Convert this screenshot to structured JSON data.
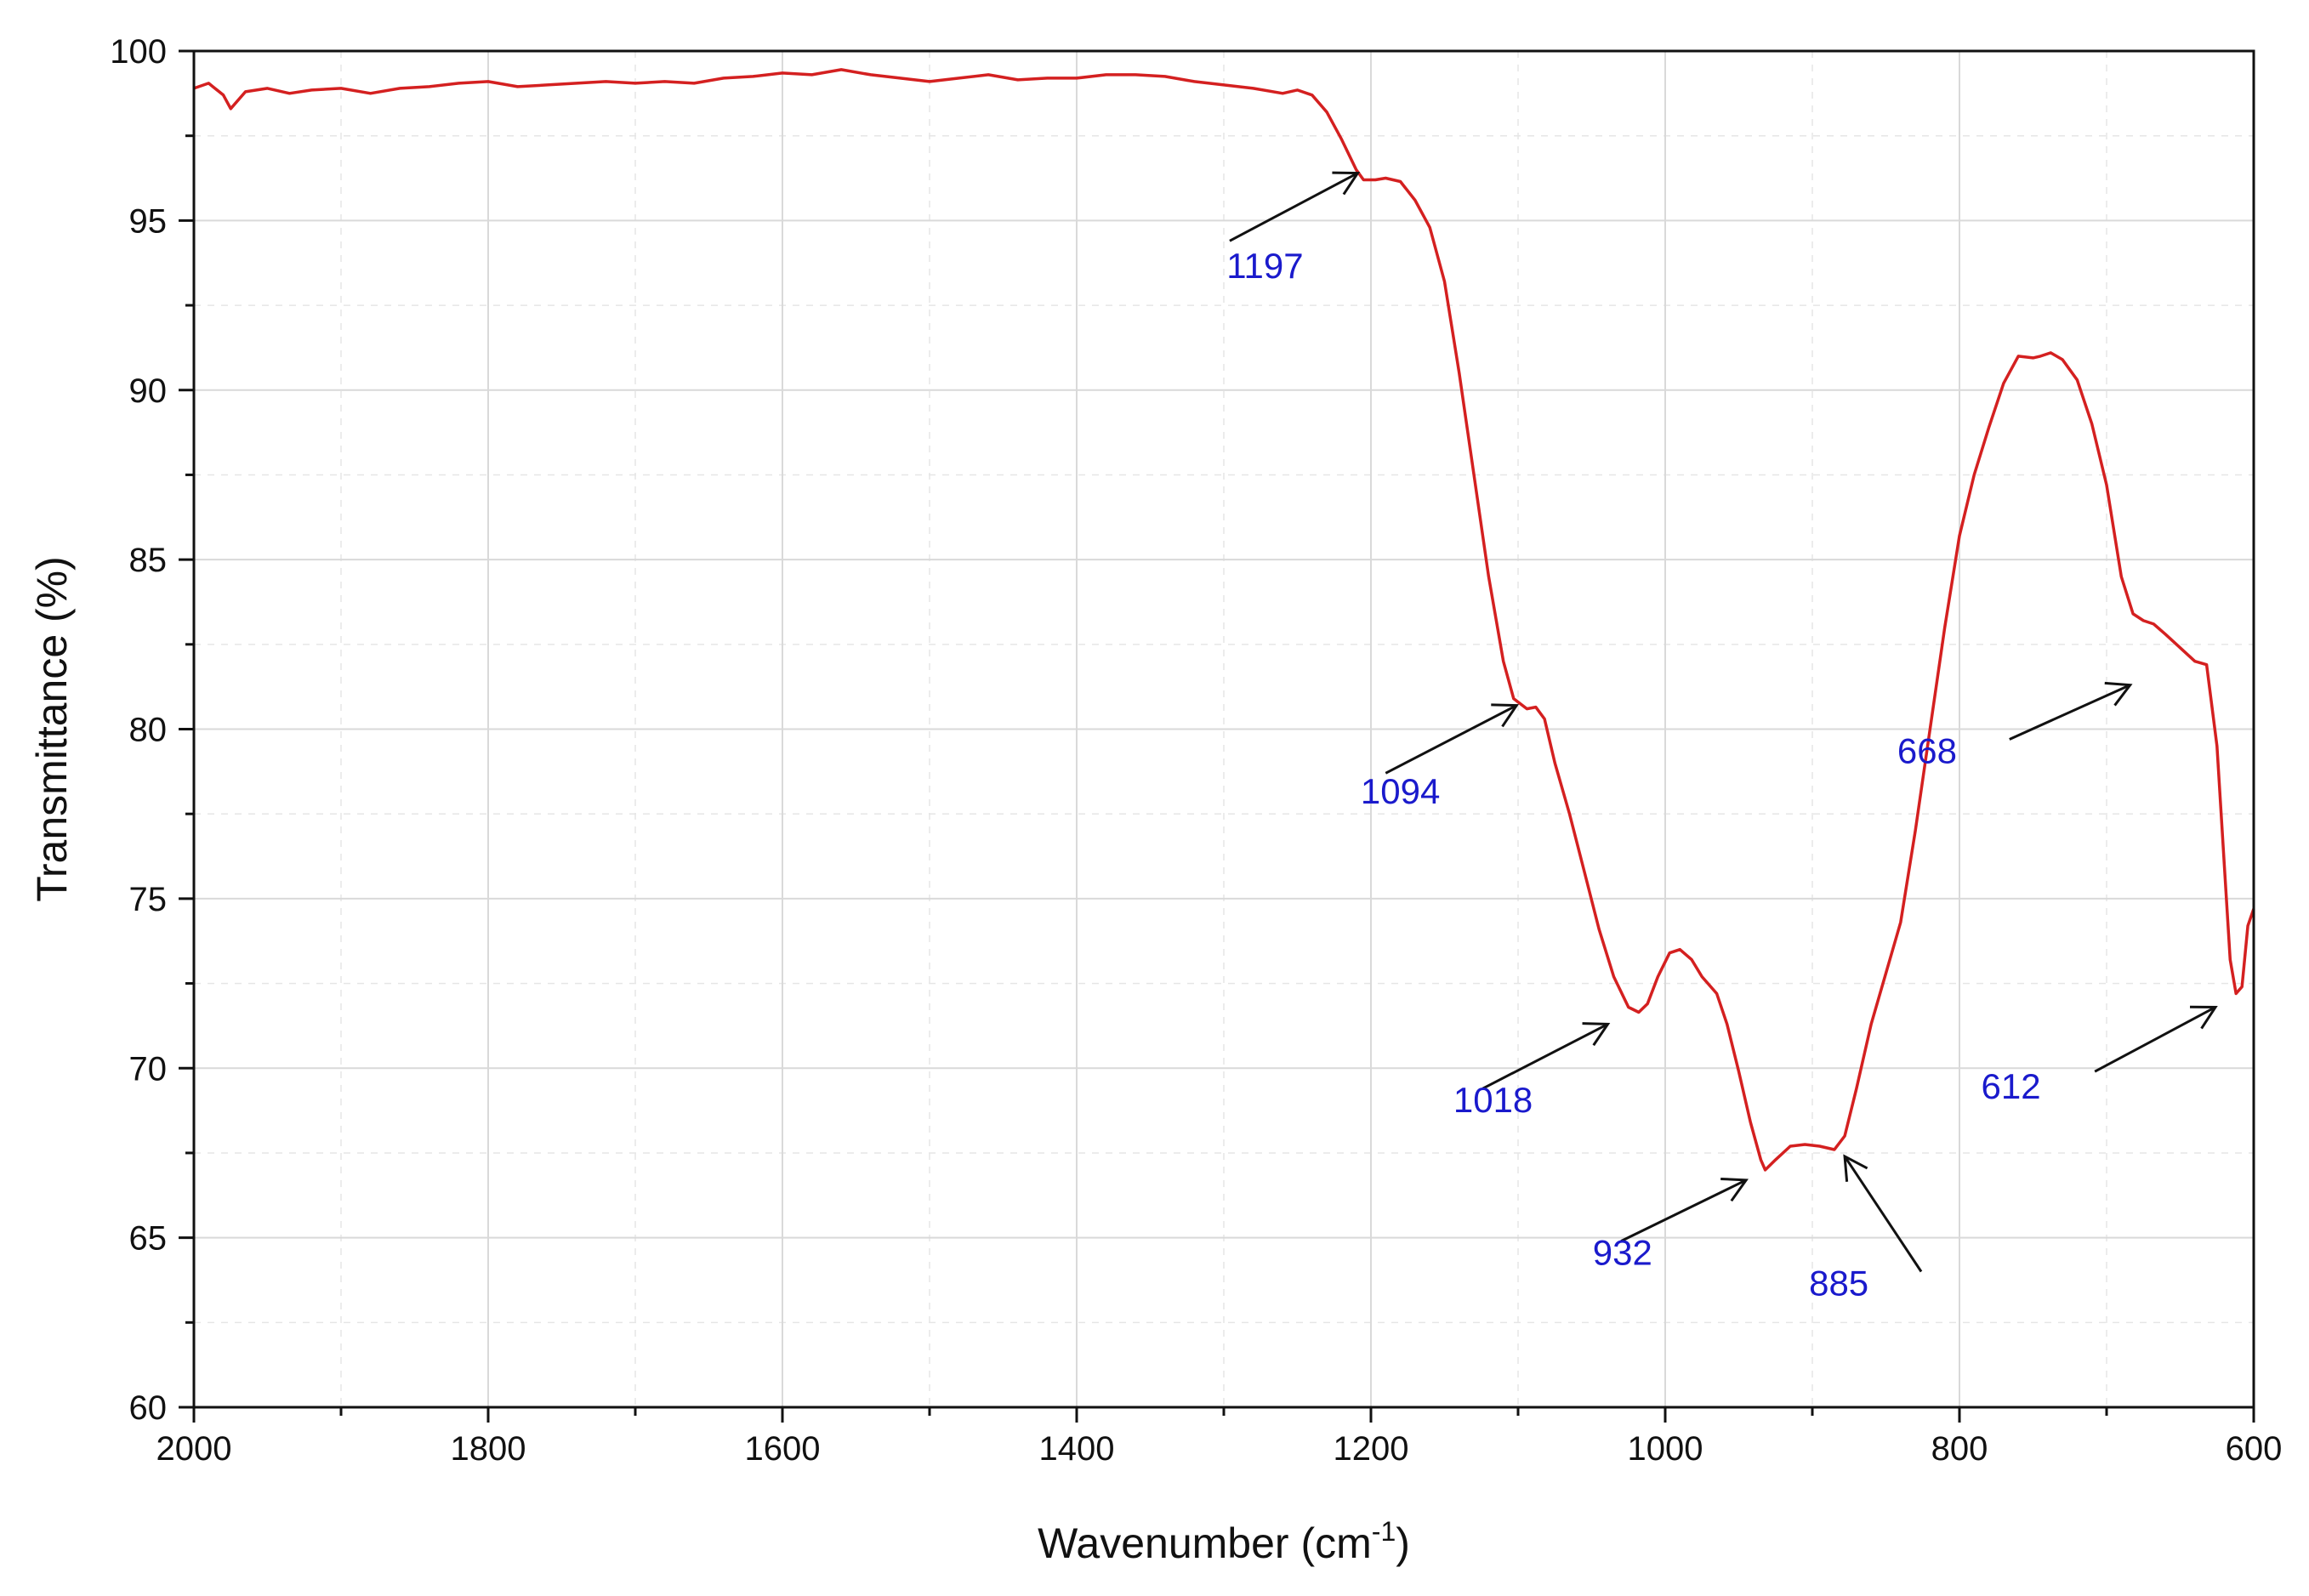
{
  "chart_data": {
    "type": "line",
    "title": "",
    "xlabel": "Wavenumber (cm",
    "xlabel_sup": "-1",
    "xlabel_close": ")",
    "ylabel": "Transmittance (%)",
    "xlim": [
      2000,
      600
    ],
    "ylim": [
      60,
      100
    ],
    "x_reversed": true,
    "grid": true,
    "x_ticks": [
      2000,
      1800,
      1600,
      1400,
      1200,
      1000,
      800,
      600
    ],
    "x_tick_labels": [
      "2000",
      "1800",
      "1600",
      "1400",
      "1200",
      "1000",
      "800",
      "600"
    ],
    "x_minor_ticks": [
      1900,
      1700,
      1500,
      1300,
      1100,
      900,
      700
    ],
    "y_ticks": [
      60,
      65,
      70,
      75,
      80,
      85,
      90,
      95,
      100
    ],
    "y_tick_labels": [
      "60",
      "65",
      "70",
      "75",
      "80",
      "85",
      "90",
      "95",
      "100"
    ],
    "y_minor_ticks": [
      62.5,
      67.5,
      72.5,
      77.5,
      82.5,
      87.5,
      92.5,
      97.5
    ],
    "line_color": "#d42020",
    "annotation_color": "#1a1acc",
    "series": [
      {
        "values": [
          [
            2000,
            98.9
          ],
          [
            1990,
            99.05
          ],
          [
            1980,
            98.7
          ],
          [
            1975,
            98.3
          ],
          [
            1965,
            98.8
          ],
          [
            1950,
            98.9
          ],
          [
            1935,
            98.75
          ],
          [
            1920,
            98.85
          ],
          [
            1900,
            98.9
          ],
          [
            1880,
            98.75
          ],
          [
            1860,
            98.9
          ],
          [
            1840,
            98.95
          ],
          [
            1820,
            99.05
          ],
          [
            1800,
            99.1
          ],
          [
            1780,
            98.95
          ],
          [
            1760,
            99.0
          ],
          [
            1740,
            99.05
          ],
          [
            1720,
            99.1
          ],
          [
            1700,
            99.05
          ],
          [
            1680,
            99.1
          ],
          [
            1660,
            99.05
          ],
          [
            1640,
            99.2
          ],
          [
            1620,
            99.25
          ],
          [
            1600,
            99.35
          ],
          [
            1580,
            99.3
          ],
          [
            1560,
            99.45
          ],
          [
            1540,
            99.3
          ],
          [
            1520,
            99.2
          ],
          [
            1500,
            99.1
          ],
          [
            1480,
            99.2
          ],
          [
            1460,
            99.3
          ],
          [
            1440,
            99.15
          ],
          [
            1420,
            99.2
          ],
          [
            1400,
            99.2
          ],
          [
            1380,
            99.3
          ],
          [
            1360,
            99.3
          ],
          [
            1340,
            99.25
          ],
          [
            1320,
            99.1
          ],
          [
            1300,
            99.0
          ],
          [
            1280,
            98.9
          ],
          [
            1260,
            98.75
          ],
          [
            1250,
            98.85
          ],
          [
            1240,
            98.7
          ],
          [
            1230,
            98.2
          ],
          [
            1220,
            97.4
          ],
          [
            1210,
            96.5
          ],
          [
            1205,
            96.2
          ],
          [
            1197,
            96.2
          ],
          [
            1190,
            96.25
          ],
          [
            1180,
            96.15
          ],
          [
            1170,
            95.6
          ],
          [
            1160,
            94.8
          ],
          [
            1150,
            93.2
          ],
          [
            1140,
            90.5
          ],
          [
            1130,
            87.5
          ],
          [
            1120,
            84.5
          ],
          [
            1110,
            82.0
          ],
          [
            1103,
            80.9
          ],
          [
            1094,
            80.6
          ],
          [
            1088,
            80.65
          ],
          [
            1082,
            80.3
          ],
          [
            1075,
            79.0
          ],
          [
            1065,
            77.5
          ],
          [
            1055,
            75.8
          ],
          [
            1045,
            74.1
          ],
          [
            1035,
            72.7
          ],
          [
            1025,
            71.8
          ],
          [
            1018,
            71.65
          ],
          [
            1012,
            71.9
          ],
          [
            1005,
            72.7
          ],
          [
            997,
            73.4
          ],
          [
            990,
            73.5
          ],
          [
            982,
            73.2
          ],
          [
            975,
            72.7
          ],
          [
            965,
            72.2
          ],
          [
            958,
            71.3
          ],
          [
            950,
            69.9
          ],
          [
            942,
            68.4
          ],
          [
            935,
            67.3
          ],
          [
            932,
            67.0
          ],
          [
            925,
            67.3
          ],
          [
            915,
            67.7
          ],
          [
            905,
            67.75
          ],
          [
            895,
            67.7
          ],
          [
            885,
            67.6
          ],
          [
            878,
            68.0
          ],
          [
            870,
            69.4
          ],
          [
            860,
            71.3
          ],
          [
            850,
            72.8
          ],
          [
            840,
            74.3
          ],
          [
            830,
            77.0
          ],
          [
            820,
            80.0
          ],
          [
            810,
            83.0
          ],
          [
            800,
            85.7
          ],
          [
            790,
            87.5
          ],
          [
            780,
            88.9
          ],
          [
            770,
            90.2
          ],
          [
            760,
            91.0
          ],
          [
            750,
            90.95
          ],
          [
            745,
            91.0
          ],
          [
            738,
            91.1
          ],
          [
            730,
            90.9
          ],
          [
            720,
            90.3
          ],
          [
            710,
            89.0
          ],
          [
            700,
            87.2
          ],
          [
            690,
            84.5
          ],
          [
            682,
            83.4
          ],
          [
            675,
            83.2
          ],
          [
            668,
            83.1
          ],
          [
            660,
            82.8
          ],
          [
            650,
            82.4
          ],
          [
            640,
            82.0
          ],
          [
            632,
            81.9
          ],
          [
            625,
            79.5
          ],
          [
            620,
            76.0
          ],
          [
            616,
            73.2
          ],
          [
            612,
            72.2
          ],
          [
            608,
            72.4
          ],
          [
            604,
            74.2
          ],
          [
            600,
            74.7
          ]
        ]
      }
    ],
    "annotations": [
      {
        "label": "1197",
        "peak": [
          1197,
          96.2
        ],
        "text_at": [
          1272,
          93.3
        ],
        "arrow_from": [
          1296,
          94.4
        ],
        "arrow_to": [
          1209,
          96.4
        ]
      },
      {
        "label": "1094",
        "peak": [
          1094,
          80.6
        ],
        "text_at": [
          1180,
          77.8
        ],
        "arrow_from": [
          1190,
          78.7
        ],
        "arrow_to": [
          1101,
          80.7
        ]
      },
      {
        "label": "1018",
        "peak": [
          1018,
          71.65
        ],
        "text_at": [
          1117,
          68.7
        ],
        "arrow_from": [
          1124,
          69.4
        ],
        "arrow_to": [
          1039,
          71.3
        ]
      },
      {
        "label": "932",
        "peak": [
          932,
          67.0
        ],
        "text_at": [
          1029,
          64.2
        ],
        "arrow_from": [
          1030,
          64.9
        ],
        "arrow_to": [
          945,
          66.7
        ]
      },
      {
        "label": "885",
        "peak": [
          885,
          67.6
        ],
        "text_at": [
          882,
          63.3
        ],
        "arrow_from": [
          826,
          64.0
        ],
        "arrow_to": [
          878,
          67.4
        ]
      },
      {
        "label": "668",
        "peak": [
          668,
          83.1
        ],
        "text_at": [
          822,
          79.0
        ],
        "arrow_from": [
          766,
          79.7
        ],
        "arrow_to": [
          684,
          81.3
        ]
      },
      {
        "label": "612",
        "peak": [
          612,
          72.2
        ],
        "text_at": [
          765,
          69.1
        ],
        "arrow_from": [
          708,
          69.9
        ],
        "arrow_to": [
          626,
          71.8
        ]
      }
    ]
  }
}
